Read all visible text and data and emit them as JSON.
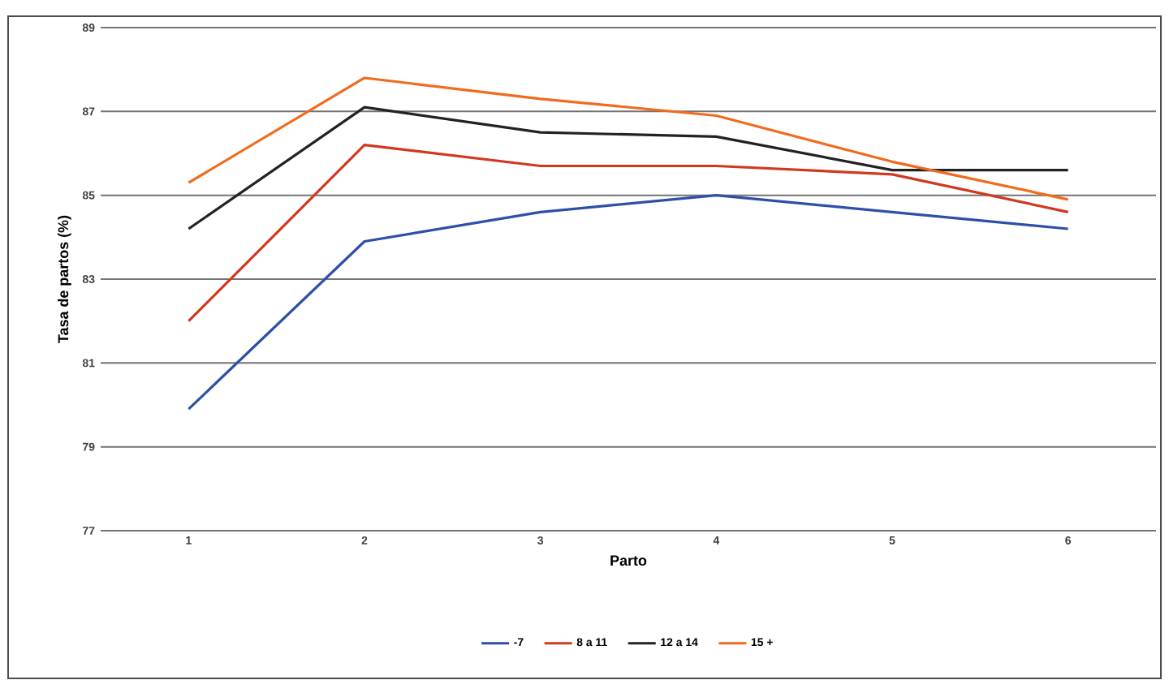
{
  "chart_data": {
    "type": "line",
    "xlabel": "Parto",
    "ylabel": "Tasa de partos (%)",
    "categories": [
      "1",
      "2",
      "3",
      "4",
      "5",
      "6"
    ],
    "series": [
      {
        "name": "-7",
        "color": "#2e4fa8",
        "values": [
          79.9,
          83.9,
          84.6,
          85.0,
          84.6,
          84.2
        ]
      },
      {
        "name": "8 a 11",
        "color": "#d0391f",
        "values": [
          82.0,
          86.2,
          85.7,
          85.7,
          85.5,
          84.6
        ]
      },
      {
        "name": "12 a 14",
        "color": "#222222",
        "values": [
          84.2,
          87.1,
          86.5,
          86.4,
          85.6,
          85.6
        ]
      },
      {
        "name": "15 +",
        "color": "#f26a1b",
        "values": [
          85.3,
          87.8,
          87.3,
          86.9,
          85.8,
          84.9
        ]
      }
    ],
    "ylim": [
      77,
      89
    ],
    "yticks": [
      77,
      79,
      81,
      83,
      85,
      87,
      89
    ],
    "grid": "y",
    "legend": "bottom",
    "marker": "none",
    "line_style": "solid"
  }
}
